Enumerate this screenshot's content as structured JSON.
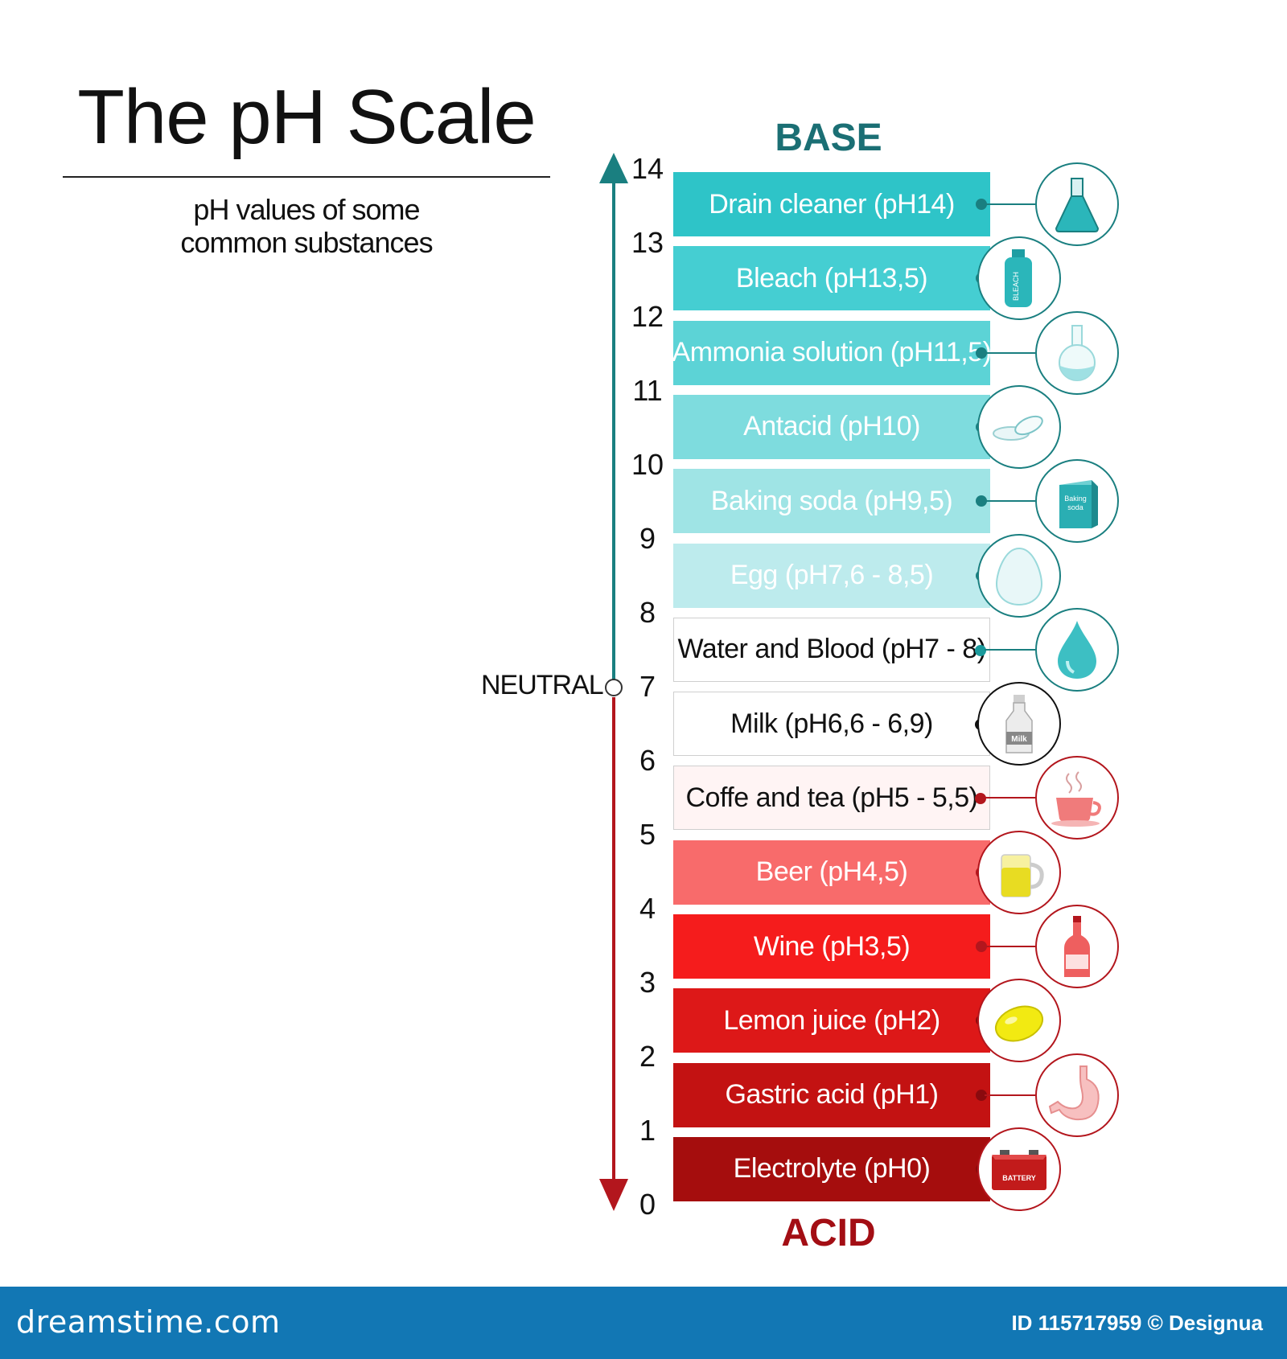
{
  "title": "The pH Scale",
  "subtitle_line1": "pH values of some",
  "subtitle_line2": "common substances",
  "base_label": "BASE",
  "acid_label": "ACID",
  "neutral_label": "NEUTRAL",
  "axis_ticks": [
    "14",
    "13",
    "12",
    "11",
    "10",
    "9",
    "8",
    "7",
    "6",
    "5",
    "4",
    "3",
    "2",
    "1",
    "0"
  ],
  "colors": {
    "base_arrow": "#1a7f80",
    "acid_arrow": "#b3161d"
  },
  "substances": [
    {
      "label": "Drain cleaner (pH14)",
      "icon": "flask-icon",
      "bg": "#2ec4c8",
      "text": "#ffffff",
      "dot": "#1a7f80",
      "ring": "#1a7f80"
    },
    {
      "label": "Bleach (pH13,5)",
      "icon": "bleach-bottle-icon",
      "bg": "#45ced2",
      "text": "#ffffff",
      "dot": "#1a7f80",
      "ring": "#1a7f80"
    },
    {
      "label": "Ammonia solution (pH11,5)",
      "icon": "round-flask-icon",
      "bg": "#5cd3d6",
      "text": "#ffffff",
      "dot": "#1a7f80",
      "ring": "#1a7f80"
    },
    {
      "label": "Antacid (pH10)",
      "icon": "tablet-icon",
      "bg": "#7edcde",
      "text": "#ffffff",
      "dot": "#1a7f80",
      "ring": "#1a7f80"
    },
    {
      "label": "Baking soda (pH9,5)",
      "icon": "baking-soda-box-icon",
      "bg": "#9fe4e5",
      "text": "#ffffff",
      "dot": "#1a7f80",
      "ring": "#1a7f80"
    },
    {
      "label": "Egg (pH7,6 - 8,5)",
      "icon": "egg-icon",
      "bg": "#bdebed",
      "text": "#ffffff",
      "dot": "#1a7f80",
      "ring": "#1a7f80"
    },
    {
      "label": "Water and Blood (pH7 - 8)",
      "icon": "water-drop-icon",
      "bg": "#ffffff",
      "text": "#111111",
      "dot": "#1a9a9c",
      "ring": "#1a7f80"
    },
    {
      "label": "Milk (pH6,6 - 6,9)",
      "icon": "milk-bottle-icon",
      "bg": "#ffffff",
      "text": "#111111",
      "dot": "#111111",
      "ring": "#111111"
    },
    {
      "label": "Coffe and tea (pH5 - 5,5)",
      "icon": "coffee-cup-icon",
      "bg": "#fff4f4",
      "text": "#111111",
      "dot": "#b3161d",
      "ring": "#b3161d"
    },
    {
      "label": "Beer (pH4,5)",
      "icon": "beer-mug-icon",
      "bg": "#f86b6b",
      "text": "#ffffff",
      "dot": "#b3161d",
      "ring": "#b3161d"
    },
    {
      "label": "Wine (pH3,5)",
      "icon": "wine-bottle-icon",
      "bg": "#f51c1c",
      "text": "#ffffff",
      "dot": "#b3161d",
      "ring": "#b3161d"
    },
    {
      "label": "Lemon juice (pH2)",
      "icon": "lemon-icon",
      "bg": "#dd1818",
      "text": "#ffffff",
      "dot": "#8a0a0e",
      "ring": "#b3161d"
    },
    {
      "label": "Gastric acid (pH1)",
      "icon": "stomach-icon",
      "bg": "#c31212",
      "text": "#ffffff",
      "dot": "#8a0a0e",
      "ring": "#b3161d"
    },
    {
      "label": "Electrolyte (pH0)",
      "icon": "battery-icon",
      "bg": "#a50d0d",
      "text": "#ffffff",
      "dot": "#8a0a0e",
      "ring": "#b3161d"
    }
  ],
  "icon_text": {
    "bleach": "BLEACH",
    "baking_soda": "Baking soda",
    "milk": "Milk",
    "battery": "BATTERY"
  },
  "footer": {
    "brand": "dreamstime.com",
    "credit": "ID 115717959 © Designua"
  }
}
